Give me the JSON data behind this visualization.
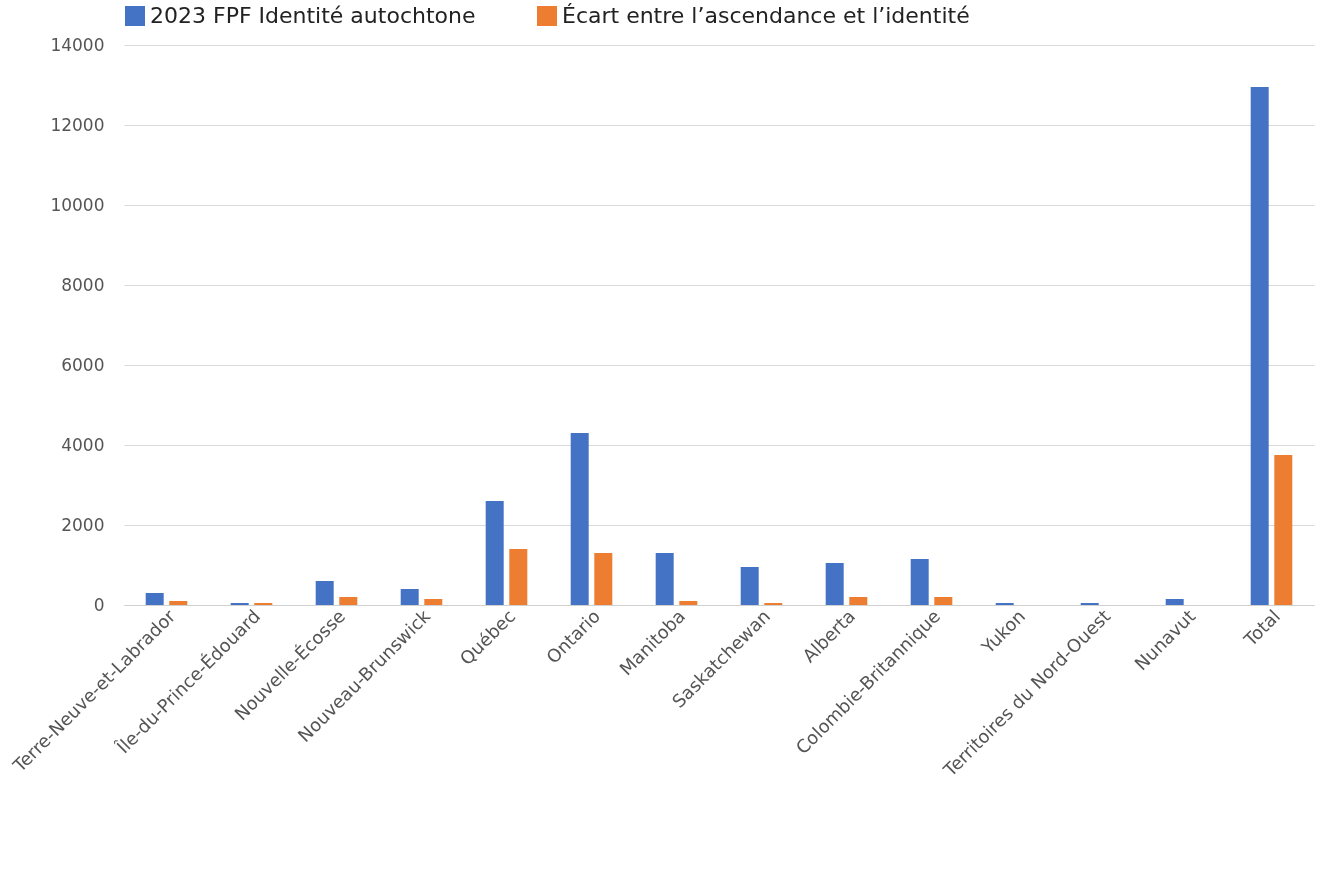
{
  "chart_data": {
    "type": "bar",
    "categories": [
      "Terre-Neuve-et-Labrador",
      "Île-du-Prince-Édouard",
      "Nouvelle-Écosse",
      "Nouveau-Brunswick",
      "Québec",
      "Ontario",
      "Manitoba",
      "Saskatchewan",
      "Alberta",
      "Colombie-Britannique",
      "Yukon",
      "Territoires du Nord-Ouest",
      "Nunavut",
      "Total"
    ],
    "series": [
      {
        "name": "2023 FPF Identité autochtone",
        "color": "#4472c4",
        "values": [
          300,
          50,
          600,
          400,
          2600,
          4300,
          1300,
          950,
          1050,
          1150,
          50,
          50,
          150,
          12950
        ]
      },
      {
        "name": "Écart entre l’ascendance et l’identité",
        "color": "#ed7d31",
        "values": [
          100,
          50,
          200,
          150,
          1400,
          1300,
          100,
          50,
          200,
          200,
          0,
          0,
          0,
          3750
        ]
      }
    ],
    "ylim": [
      0,
      14000
    ],
    "yticks": [
      0,
      2000,
      4000,
      6000,
      8000,
      10000,
      12000,
      14000
    ],
    "grid": "y",
    "legend": "top"
  }
}
